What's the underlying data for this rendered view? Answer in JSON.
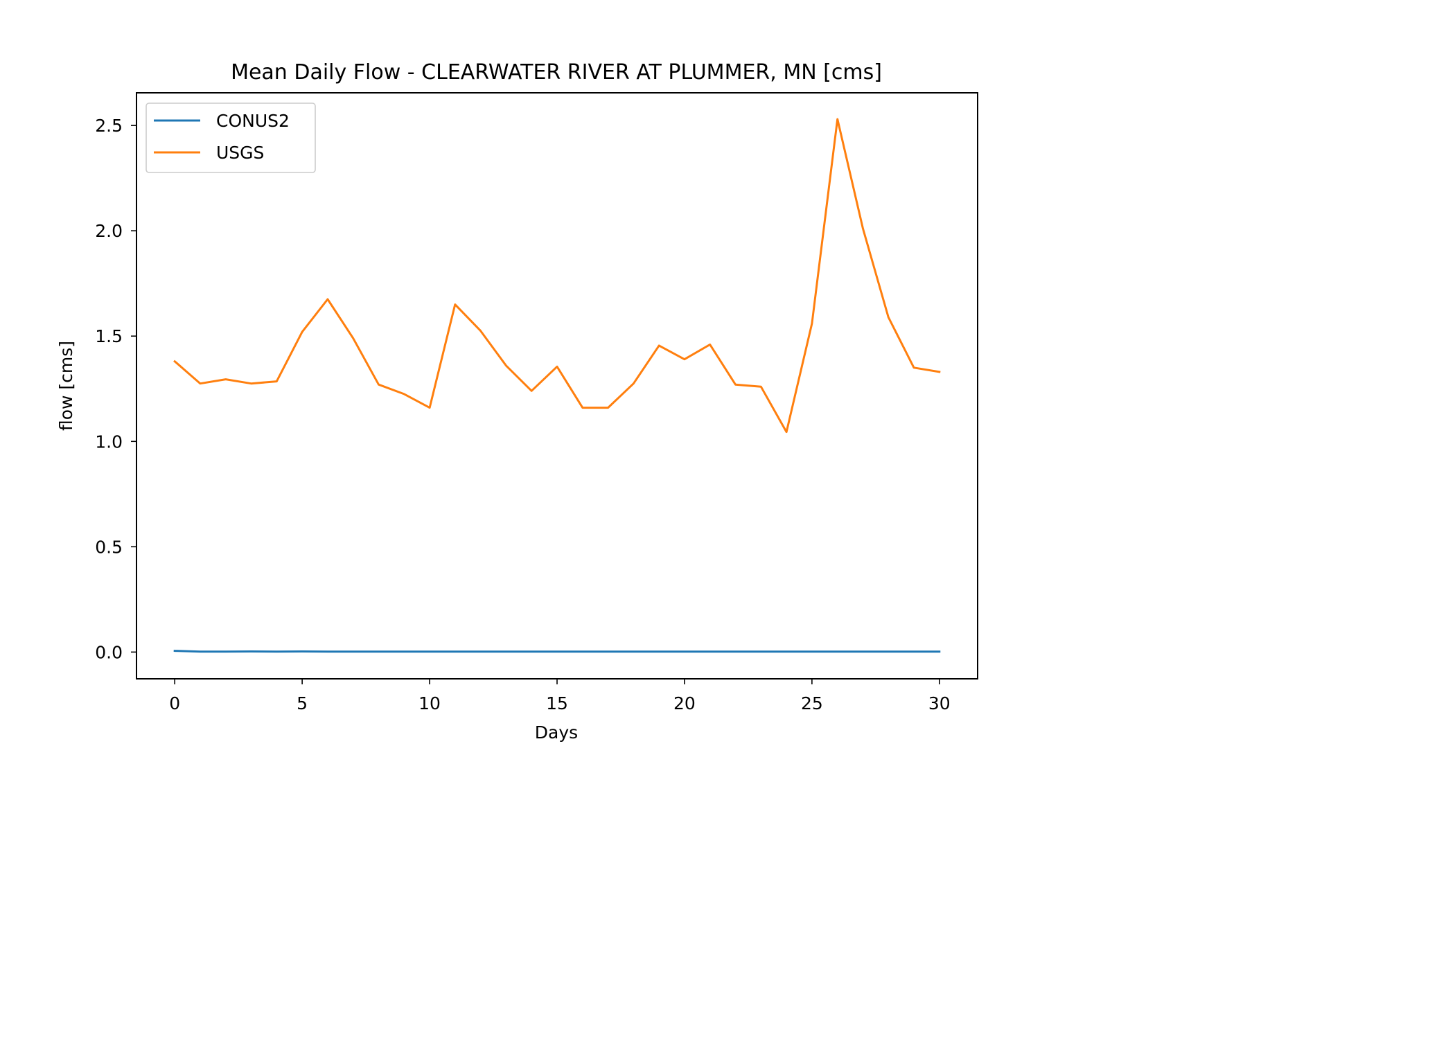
{
  "chart_data": {
    "type": "line",
    "title": "Mean Daily Flow - CLEARWATER RIVER AT PLUMMER, MN [cms]",
    "xlabel": "Days",
    "ylabel": "flow [cms]",
    "xlim": [
      -1.5,
      31.5
    ],
    "ylim": [
      -0.127,
      2.655
    ],
    "xticks": [
      0,
      5,
      10,
      15,
      20,
      25,
      30
    ],
    "xtick_labels": [
      "0",
      "5",
      "10",
      "15",
      "20",
      "25",
      "30"
    ],
    "yticks": [
      0.0,
      0.5,
      1.0,
      1.5,
      2.0,
      2.5
    ],
    "ytick_labels": [
      "0.0",
      "0.5",
      "1.0",
      "1.5",
      "2.0",
      "2.5"
    ],
    "grid": false,
    "legend_position": "upper left",
    "x": [
      0,
      1,
      2,
      3,
      4,
      5,
      6,
      7,
      8,
      9,
      10,
      11,
      12,
      13,
      14,
      15,
      16,
      17,
      18,
      19,
      20,
      21,
      22,
      23,
      24,
      25,
      26,
      27,
      28,
      29,
      30
    ],
    "series": [
      {
        "name": "CONUS2",
        "color": "#1f77b4",
        "values": [
          0.006,
          0.002,
          0.002,
          0.003,
          0.002,
          0.003,
          0.002,
          0.002,
          0.002,
          0.002,
          0.002,
          0.002,
          0.002,
          0.002,
          0.002,
          0.002,
          0.002,
          0.002,
          0.002,
          0.002,
          0.002,
          0.002,
          0.002,
          0.002,
          0.002,
          0.002,
          0.002,
          0.002,
          0.002,
          0.002,
          0.002
        ]
      },
      {
        "name": "USGS",
        "color": "#ff7f0e",
        "values": [
          1.38,
          1.275,
          1.295,
          1.275,
          1.285,
          1.52,
          1.675,
          1.49,
          1.27,
          1.225,
          1.16,
          1.65,
          1.525,
          1.36,
          1.24,
          1.355,
          1.16,
          1.16,
          1.275,
          1.455,
          1.39,
          1.46,
          1.27,
          1.26,
          1.045,
          1.56,
          2.53,
          2.01,
          1.59,
          1.35,
          1.33
        ]
      }
    ]
  }
}
